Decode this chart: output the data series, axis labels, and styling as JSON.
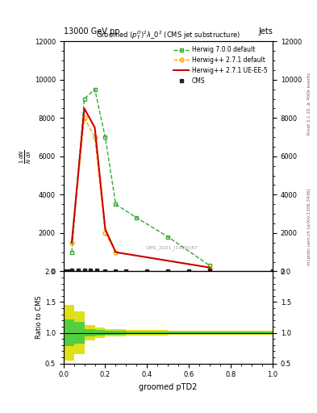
{
  "title_top": "13000 GeV pp",
  "title_top_right": "Jets",
  "plot_title": "Groomed $(p_T^D)^2\\lambda\\_0^2$ (CMS jet substructure)",
  "xlabel": "groomed pTD2",
  "ylabel_ratio": "Ratio to CMS",
  "right_label_top": "Rivet 3.1.10, ≥ 400k events",
  "right_label_bot": "mcplots.cern.ch [arXiv:1306.3436]",
  "watermark": "CMS_2021_I1920187",
  "cms_x": [
    0.0,
    0.02,
    0.04,
    0.07,
    0.1,
    0.13,
    0.16,
    0.2,
    0.25,
    0.3,
    0.4,
    0.5,
    0.6,
    0.7,
    1.0
  ],
  "cms_y": [
    0,
    30,
    60,
    80,
    80,
    80,
    80,
    0,
    0,
    0,
    0,
    0,
    0,
    50,
    0
  ],
  "cms_color": "#222222",
  "herwig271_x": [
    0.04,
    0.1,
    0.15,
    0.2,
    0.25,
    0.7
  ],
  "herwig271_y": [
    1500,
    8000,
    7000,
    2000,
    1000,
    200
  ],
  "herwig271_color": "#FFA500",
  "herwig271_label": "Herwig++ 2.7.1 default",
  "herwig271ue_x": [
    0.04,
    0.1,
    0.15,
    0.2,
    0.25,
    0.7
  ],
  "herwig271ue_y": [
    1500,
    8500,
    7500,
    2200,
    1000,
    200
  ],
  "herwig271ue_color": "#CC0000",
  "herwig271ue_label": "Herwig++ 2.7.1 UE-EE-5",
  "herwig700_x": [
    0.04,
    0.1,
    0.15,
    0.2,
    0.25,
    0.35,
    0.5,
    0.7
  ],
  "herwig700_y": [
    1000,
    9000,
    9500,
    7000,
    3500,
    2800,
    1800,
    300
  ],
  "herwig700_color": "#33AA33",
  "herwig700_label": "Herwig 7.0.0 default",
  "ratio_xbins": [
    0.0,
    0.05,
    0.1,
    0.15,
    0.2,
    0.3,
    0.5,
    0.7,
    1.0
  ],
  "ratio_yellow_lo": [
    0.55,
    0.65,
    0.88,
    0.92,
    0.94,
    0.96,
    0.97,
    0.97,
    0.97
  ],
  "ratio_yellow_hi": [
    1.45,
    1.35,
    1.12,
    1.08,
    1.06,
    1.04,
    1.03,
    1.03,
    1.03
  ],
  "ratio_green_lo": [
    0.78,
    0.82,
    0.94,
    0.96,
    0.97,
    0.98,
    0.985,
    0.985,
    0.985
  ],
  "ratio_green_hi": [
    1.22,
    1.18,
    1.06,
    1.04,
    1.03,
    1.02,
    1.015,
    1.015,
    1.015
  ],
  "ylim_main": [
    0,
    12000
  ],
  "ylim_ratio": [
    0.5,
    2.0
  ],
  "xlim": [
    0.0,
    1.0
  ],
  "yticks_main": [
    0,
    2000,
    4000,
    6000,
    8000,
    10000,
    12000
  ],
  "yticks_ratio": [
    0.5,
    1.0,
    1.5,
    2.0
  ],
  "background_color": "#ffffff"
}
